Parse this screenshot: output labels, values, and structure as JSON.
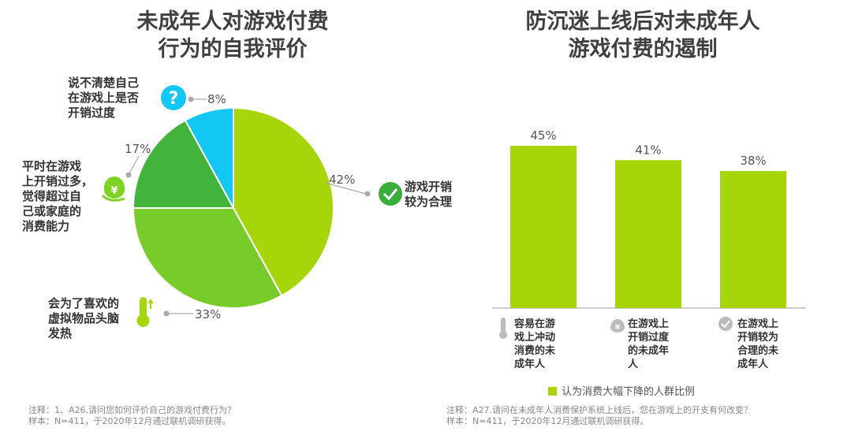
{
  "left_chart": {
    "title_line1": "未成年人对游戏付费",
    "title_line2": "行为的自我评价",
    "note_line1": "注释：1、A26.请问您如何评价自己的游戏付费行为？",
    "note_line2": "样本：N=411，于2020年12月通过联机调研获得。"
  },
  "right_chart": {
    "title_line1": "防沉迷上线后对未成年人",
    "title_line2": "游戏付费的遏制",
    "legend": "认为消费大幅下降的人群比例",
    "note_line1": "注释：A27.请问在未成年人消费保护系统上线后，您在游戏上的开支有何改变？",
    "note_line2": "样本：N=411，于2020年12月通过联机调研获得。"
  },
  "chart_data": [
    {
      "type": "pie",
      "title": "未成年人对游戏付费行为的自我评价",
      "slices": [
        {
          "label": "游戏开销较为合理",
          "value": 42,
          "value_label": "42%",
          "color": "#a6d60a",
          "icon": "check-icon"
        },
        {
          "label": "会为了喜欢的虚拟物品头脑发热",
          "value": 33,
          "value_label": "33%",
          "color": "#78cc2a",
          "icon": "thermometer-icon"
        },
        {
          "label": "平时在游戏上开销过多，觉得超过自己或家庭的消费能力",
          "value": 17,
          "value_label": "17%",
          "color": "#42b33b",
          "icon": "money-bag-icon"
        },
        {
          "label": "说不清楚自己在游戏上是否开销过度",
          "value": 8,
          "value_label": "8%",
          "color": "#12c7f3",
          "icon": "question-icon"
        }
      ]
    },
    {
      "type": "bar",
      "title": "防沉迷上线后对未成年人游戏付费的遏制",
      "categories": [
        "容易在游戏上冲动消费的未成年人",
        "在游戏上开销过度的未成年人",
        "在游戏上开销较为合理的未成年人"
      ],
      "category_lines": [
        [
          "容易在游",
          "戏上冲动",
          "消费的未",
          "成年人"
        ],
        [
          "在游戏上",
          "开销过度",
          "的未成年",
          "人"
        ],
        [
          "在游戏上",
          "开销较为",
          "合理的未",
          "成年人"
        ]
      ],
      "category_icons": [
        "thermometer-icon",
        "money-bag-icon",
        "check-icon"
      ],
      "series": [
        {
          "name": "认为消费大幅下降的人群比例",
          "values": [
            45,
            41,
            38
          ],
          "color": "#a6d60a"
        }
      ],
      "value_labels": [
        "45%",
        "41%",
        "38%"
      ]
    }
  ],
  "pie_labels": {
    "reasonable": [
      "游戏开销",
      "较为合理"
    ],
    "impulse": [
      "会为了喜欢的",
      "虚拟物品头脑",
      "发热"
    ],
    "overspend": [
      "平时在游戏",
      "上开销过多，",
      "觉得超过自",
      "己或家庭的",
      "消费能力"
    ],
    "unsure": [
      "说不清楚自己",
      "在游戏上是否",
      "开销过度"
    ]
  },
  "icons": {
    "question_glyph": "?",
    "check_glyph": "✓",
    "yen_glyph": "¥"
  }
}
